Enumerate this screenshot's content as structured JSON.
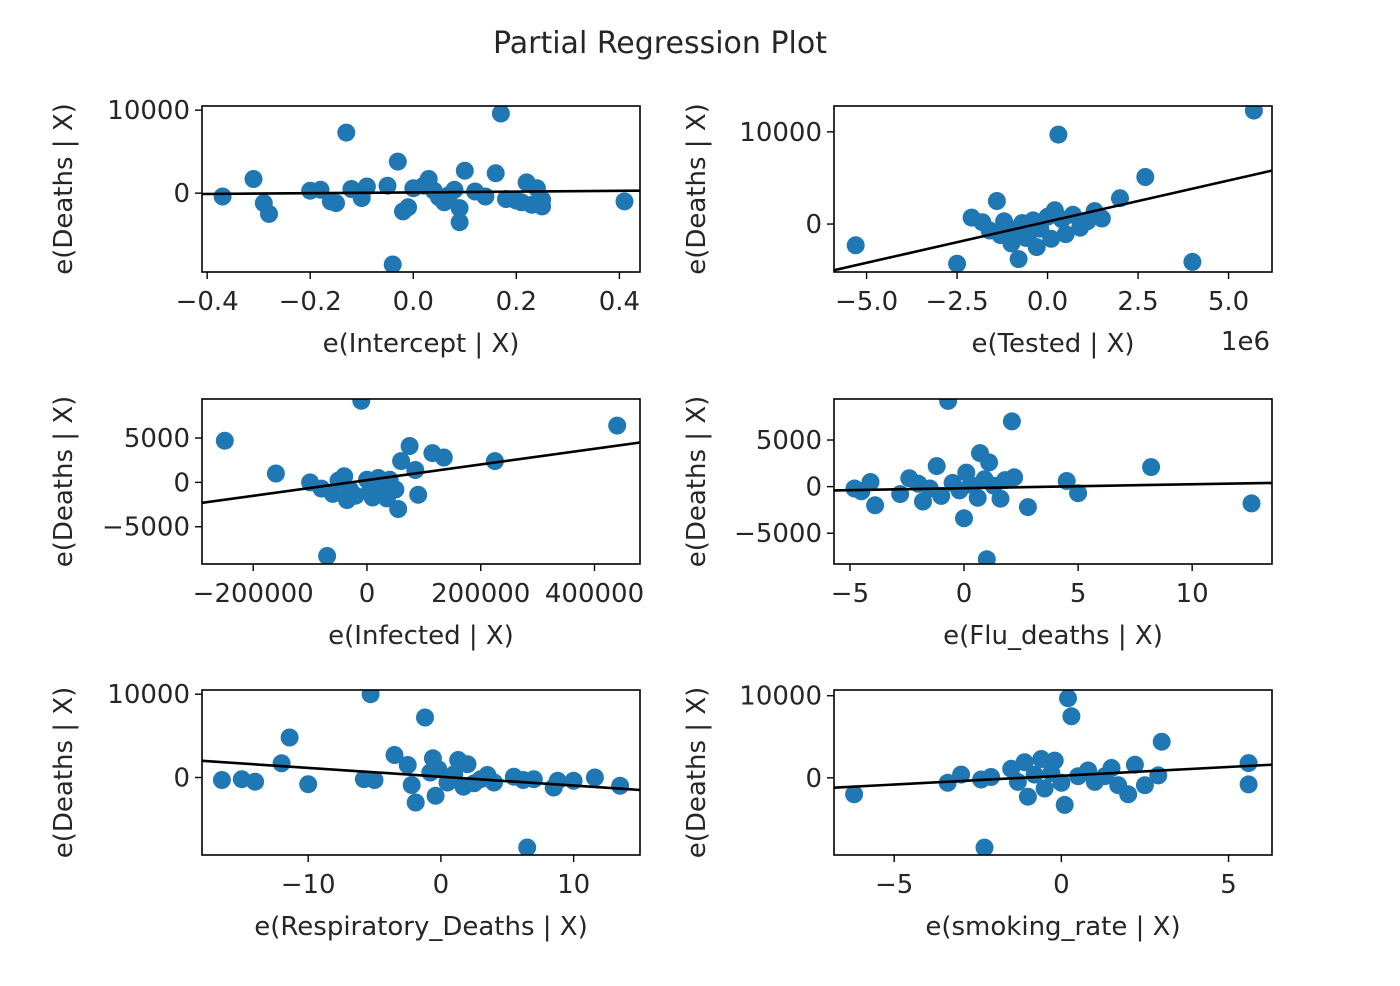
{
  "title": "Partial Regression Plot",
  "colors": {
    "points": "#1f77b4",
    "fit_line": "#000000",
    "axes": "#000000"
  },
  "chart_data": [
    {
      "type": "scatter",
      "xlabel": "e(Intercept | X)",
      "ylabel": "e(Deaths | X)",
      "xlim": [
        -0.41,
        0.44
      ],
      "ylim": [
        -9500,
        10500
      ],
      "xticks": [
        -0.4,
        -0.2,
        0.0,
        0.2,
        0.4
      ],
      "xtick_labels": [
        "−0.4",
        "−0.2",
        "0.0",
        "0.2",
        "0.4"
      ],
      "yticks": [
        0,
        10000
      ],
      "ytick_labels": [
        "0",
        "10000"
      ],
      "fit_line": {
        "x": [
          -0.41,
          0.44
        ],
        "y": [
          -100,
          300
        ]
      },
      "points": [
        {
          "x": -0.37,
          "y": -400
        },
        {
          "x": -0.31,
          "y": 1700
        },
        {
          "x": -0.29,
          "y": -1200
        },
        {
          "x": -0.28,
          "y": -2500
        },
        {
          "x": -0.2,
          "y": 300
        },
        {
          "x": -0.18,
          "y": 400
        },
        {
          "x": -0.16,
          "y": -1000
        },
        {
          "x": -0.15,
          "y": -1200
        },
        {
          "x": -0.13,
          "y": 7300
        },
        {
          "x": -0.12,
          "y": 500
        },
        {
          "x": -0.1,
          "y": -600
        },
        {
          "x": -0.09,
          "y": 800
        },
        {
          "x": -0.05,
          "y": 900
        },
        {
          "x": -0.04,
          "y": -8600
        },
        {
          "x": -0.03,
          "y": 3800
        },
        {
          "x": -0.02,
          "y": -2200
        },
        {
          "x": -0.01,
          "y": -1700
        },
        {
          "x": 0.0,
          "y": 600
        },
        {
          "x": 0.02,
          "y": 900
        },
        {
          "x": 0.03,
          "y": 1700
        },
        {
          "x": 0.04,
          "y": 300
        },
        {
          "x": 0.05,
          "y": -500
        },
        {
          "x": 0.06,
          "y": -1100
        },
        {
          "x": 0.07,
          "y": -200
        },
        {
          "x": 0.08,
          "y": 400
        },
        {
          "x": 0.09,
          "y": -1800
        },
        {
          "x": 0.09,
          "y": -3500
        },
        {
          "x": 0.1,
          "y": 2700
        },
        {
          "x": 0.12,
          "y": 200
        },
        {
          "x": 0.14,
          "y": -400
        },
        {
          "x": 0.16,
          "y": 2400
        },
        {
          "x": 0.17,
          "y": 9600
        },
        {
          "x": 0.18,
          "y": -700
        },
        {
          "x": 0.2,
          "y": -900
        },
        {
          "x": 0.21,
          "y": -1100
        },
        {
          "x": 0.22,
          "y": 1300
        },
        {
          "x": 0.23,
          "y": -1400
        },
        {
          "x": 0.24,
          "y": 600
        },
        {
          "x": 0.25,
          "y": -800
        },
        {
          "x": 0.25,
          "y": -1600
        },
        {
          "x": 0.41,
          "y": -1000
        }
      ]
    },
    {
      "type": "scatter",
      "xlabel": "e(Tested | X)",
      "ylabel": "e(Deaths | X)",
      "offset_label": "1e6",
      "xlim": [
        -5.9,
        6.2
      ],
      "ylim": [
        -5200,
        12800
      ],
      "xticks": [
        -5.0,
        -2.5,
        0.0,
        2.5,
        5.0
      ],
      "xtick_labels": [
        "−5.0",
        "−2.5",
        "0.0",
        "2.5",
        "5.0"
      ],
      "yticks": [
        0,
        10000
      ],
      "ytick_labels": [
        "0",
        "10000"
      ],
      "fit_line": {
        "x": [
          -5.9,
          6.2
        ],
        "y": [
          -5000,
          5800
        ]
      },
      "points": [
        {
          "x": -5.3,
          "y": -2300
        },
        {
          "x": -2.5,
          "y": -4300
        },
        {
          "x": -2.1,
          "y": 700
        },
        {
          "x": -1.8,
          "y": 200
        },
        {
          "x": -1.6,
          "y": -700
        },
        {
          "x": -1.4,
          "y": 2500
        },
        {
          "x": -1.3,
          "y": -1200
        },
        {
          "x": -1.2,
          "y": 300
        },
        {
          "x": -1.0,
          "y": -2100
        },
        {
          "x": -0.9,
          "y": -600
        },
        {
          "x": -0.8,
          "y": -3800
        },
        {
          "x": -0.7,
          "y": 100
        },
        {
          "x": -0.6,
          "y": -1500
        },
        {
          "x": -0.5,
          "y": -900
        },
        {
          "x": -0.4,
          "y": 400
        },
        {
          "x": -0.3,
          "y": -2500
        },
        {
          "x": -0.2,
          "y": -500
        },
        {
          "x": 0.0,
          "y": 800
        },
        {
          "x": 0.1,
          "y": -1600
        },
        {
          "x": 0.2,
          "y": 1500
        },
        {
          "x": 0.3,
          "y": 9700
        },
        {
          "x": 0.4,
          "y": 500
        },
        {
          "x": 0.5,
          "y": -1100
        },
        {
          "x": 0.7,
          "y": 1000
        },
        {
          "x": 0.9,
          "y": -400
        },
        {
          "x": 1.1,
          "y": 300
        },
        {
          "x": 1.3,
          "y": 1400
        },
        {
          "x": 1.5,
          "y": 600
        },
        {
          "x": 2.0,
          "y": 2800
        },
        {
          "x": 2.7,
          "y": 5100
        },
        {
          "x": 4.0,
          "y": -4100
        },
        {
          "x": 5.7,
          "y": 12300
        }
      ]
    },
    {
      "type": "scatter",
      "xlabel": "e(Infected | X)",
      "ylabel": "e(Deaths | X)",
      "xlim": [
        -290000,
        480000
      ],
      "ylim": [
        -9200,
        9400
      ],
      "xticks": [
        -200000,
        0,
        200000,
        400000
      ],
      "xtick_labels": [
        "−200000",
        "0",
        "200000",
        "400000"
      ],
      "yticks": [
        -5000,
        0,
        5000
      ],
      "ytick_labels": [
        "−5000",
        "0",
        "5000"
      ],
      "fit_line": {
        "x": [
          -290000,
          480000
        ],
        "y": [
          -2300,
          4500
        ]
      },
      "points": [
        {
          "x": -250000,
          "y": 4700
        },
        {
          "x": -160000,
          "y": 1000
        },
        {
          "x": -100000,
          "y": 0
        },
        {
          "x": -80000,
          "y": -700
        },
        {
          "x": -70000,
          "y": -8300
        },
        {
          "x": -60000,
          "y": -1300
        },
        {
          "x": -50000,
          "y": 200
        },
        {
          "x": -40000,
          "y": 700
        },
        {
          "x": -35000,
          "y": -2000
        },
        {
          "x": -30000,
          "y": -800
        },
        {
          "x": -20000,
          "y": -1500
        },
        {
          "x": -10000,
          "y": 9200
        },
        {
          "x": 0,
          "y": 300
        },
        {
          "x": 5000,
          "y": -1000
        },
        {
          "x": 10000,
          "y": -1700
        },
        {
          "x": 20000,
          "y": 500
        },
        {
          "x": 25000,
          "y": -600
        },
        {
          "x": 35000,
          "y": -1800
        },
        {
          "x": 40000,
          "y": 300
        },
        {
          "x": 50000,
          "y": -800
        },
        {
          "x": 55000,
          "y": -3000
        },
        {
          "x": 60000,
          "y": 2400
        },
        {
          "x": 75000,
          "y": 4100
        },
        {
          "x": 85000,
          "y": 1400
        },
        {
          "x": 90000,
          "y": -1400
        },
        {
          "x": 115000,
          "y": 3300
        },
        {
          "x": 135000,
          "y": 2800
        },
        {
          "x": 225000,
          "y": 2400
        },
        {
          "x": 440000,
          "y": 6400
        }
      ]
    },
    {
      "type": "scatter",
      "xlabel": "e(Flu_deaths | X)",
      "ylabel": "e(Deaths | X)",
      "xlim": [
        -5.7,
        13.5
      ],
      "ylim": [
        -8300,
        9400
      ],
      "xticks": [
        -5,
        0,
        5,
        10
      ],
      "xtick_labels": [
        "−5",
        "0",
        "5",
        "10"
      ],
      "yticks": [
        -5000,
        0,
        5000
      ],
      "ytick_labels": [
        "−5000",
        "0",
        "5000"
      ],
      "fit_line": {
        "x": [
          -5.7,
          13.5
        ],
        "y": [
          -400,
          400
        ]
      },
      "points": [
        {
          "x": -4.8,
          "y": -200
        },
        {
          "x": -4.5,
          "y": -500
        },
        {
          "x": -4.1,
          "y": 500
        },
        {
          "x": -3.9,
          "y": -2000
        },
        {
          "x": -2.8,
          "y": -800
        },
        {
          "x": -2.4,
          "y": 900
        },
        {
          "x": -2.0,
          "y": 300
        },
        {
          "x": -1.8,
          "y": -1600
        },
        {
          "x": -1.5,
          "y": -200
        },
        {
          "x": -1.2,
          "y": 2200
        },
        {
          "x": -1.0,
          "y": -1000
        },
        {
          "x": -0.7,
          "y": 9200
        },
        {
          "x": -0.5,
          "y": 400
        },
        {
          "x": -0.2,
          "y": -400
        },
        {
          "x": 0.0,
          "y": -3400
        },
        {
          "x": 0.1,
          "y": 1500
        },
        {
          "x": 0.3,
          "y": 200
        },
        {
          "x": 0.6,
          "y": -1200
        },
        {
          "x": 0.7,
          "y": 3600
        },
        {
          "x": 0.9,
          "y": 800
        },
        {
          "x": 1.0,
          "y": -7800
        },
        {
          "x": 1.1,
          "y": 2600
        },
        {
          "x": 1.3,
          "y": 100
        },
        {
          "x": 1.6,
          "y": -1300
        },
        {
          "x": 1.8,
          "y": 700
        },
        {
          "x": 2.1,
          "y": 7000
        },
        {
          "x": 2.2,
          "y": 1000
        },
        {
          "x": 2.8,
          "y": -2200
        },
        {
          "x": 4.5,
          "y": 600
        },
        {
          "x": 5.0,
          "y": -700
        },
        {
          "x": 8.2,
          "y": 2100
        },
        {
          "x": 12.6,
          "y": -1800
        }
      ]
    },
    {
      "type": "scatter",
      "xlabel": "e(Respiratory_Deaths | X)",
      "ylabel": "e(Deaths | X)",
      "xlim": [
        -18,
        15
      ],
      "ylim": [
        -9300,
        10500
      ],
      "xticks": [
        -10,
        0,
        10
      ],
      "xtick_labels": [
        "−10",
        "0",
        "10"
      ],
      "yticks": [
        0,
        10000
      ],
      "ytick_labels": [
        "0",
        "10000"
      ],
      "fit_line": {
        "x": [
          -18,
          15
        ],
        "y": [
          2000,
          -1500
        ]
      },
      "points": [
        {
          "x": -16.5,
          "y": -300
        },
        {
          "x": -15,
          "y": -200
        },
        {
          "x": -14,
          "y": -500
        },
        {
          "x": -12,
          "y": 1700
        },
        {
          "x": -11.4,
          "y": 4800
        },
        {
          "x": -10,
          "y": -800
        },
        {
          "x": -5.8,
          "y": -200
        },
        {
          "x": -5.3,
          "y": 10000
        },
        {
          "x": -5.0,
          "y": -300
        },
        {
          "x": -3.5,
          "y": 2700
        },
        {
          "x": -2.5,
          "y": 1500
        },
        {
          "x": -2.2,
          "y": -900
        },
        {
          "x": -1.9,
          "y": -3000
        },
        {
          "x": -1.2,
          "y": 7200
        },
        {
          "x": -0.8,
          "y": 600
        },
        {
          "x": -0.6,
          "y": 2300
        },
        {
          "x": -0.4,
          "y": -2200
        },
        {
          "x": -0.2,
          "y": 1000
        },
        {
          "x": 0.5,
          "y": -600
        },
        {
          "x": 1.0,
          "y": 400
        },
        {
          "x": 1.3,
          "y": 2100
        },
        {
          "x": 1.7,
          "y": -1100
        },
        {
          "x": 2.0,
          "y": 1600
        },
        {
          "x": 2.5,
          "y": -700
        },
        {
          "x": 3.0,
          "y": -200
        },
        {
          "x": 3.5,
          "y": 300
        },
        {
          "x": 4.0,
          "y": -600
        },
        {
          "x": 5.5,
          "y": 100
        },
        {
          "x": 6.2,
          "y": -300
        },
        {
          "x": 6.5,
          "y": -8400
        },
        {
          "x": 7.0,
          "y": -200
        },
        {
          "x": 8.5,
          "y": -1200
        },
        {
          "x": 8.8,
          "y": -400
        },
        {
          "x": 10,
          "y": -400
        },
        {
          "x": 11.6,
          "y": 0
        },
        {
          "x": 13.5,
          "y": -1000
        }
      ]
    },
    {
      "type": "scatter",
      "xlabel": "e(smoking_rate | X)",
      "ylabel": "e(Deaths | X)",
      "xlim": [
        -6.8,
        6.3
      ],
      "ylim": [
        -9400,
        10700
      ],
      "xticks": [
        -5,
        0,
        5
      ],
      "xtick_labels": [
        "−5",
        "0",
        "5"
      ],
      "yticks": [
        0,
        10000
      ],
      "ytick_labels": [
        "0",
        "10000"
      ],
      "fit_line": {
        "x": [
          -6.8,
          6.3
        ],
        "y": [
          -1200,
          1600
        ]
      },
      "points": [
        {
          "x": -6.2,
          "y": -2000
        },
        {
          "x": -3.4,
          "y": -600
        },
        {
          "x": -3.0,
          "y": 400
        },
        {
          "x": -2.4,
          "y": -200
        },
        {
          "x": -2.3,
          "y": -8500
        },
        {
          "x": -2.1,
          "y": 100
        },
        {
          "x": -1.5,
          "y": 1100
        },
        {
          "x": -1.3,
          "y": -500
        },
        {
          "x": -1.1,
          "y": 1900
        },
        {
          "x": -1.0,
          "y": -2300
        },
        {
          "x": -0.8,
          "y": 400
        },
        {
          "x": -0.6,
          "y": 2300
        },
        {
          "x": -0.5,
          "y": -1300
        },
        {
          "x": -0.3,
          "y": 600
        },
        {
          "x": -0.2,
          "y": 2100
        },
        {
          "x": 0.0,
          "y": -600
        },
        {
          "x": 0.1,
          "y": -3300
        },
        {
          "x": 0.2,
          "y": 9700
        },
        {
          "x": 0.3,
          "y": 7500
        },
        {
          "x": 0.5,
          "y": 200
        },
        {
          "x": 0.8,
          "y": 900
        },
        {
          "x": 1.0,
          "y": -500
        },
        {
          "x": 1.3,
          "y": 200
        },
        {
          "x": 1.5,
          "y": 1200
        },
        {
          "x": 1.7,
          "y": -900
        },
        {
          "x": 2.0,
          "y": -2000
        },
        {
          "x": 2.2,
          "y": 1600
        },
        {
          "x": 2.5,
          "y": -900
        },
        {
          "x": 2.9,
          "y": 300
        },
        {
          "x": 3.0,
          "y": 4400
        },
        {
          "x": 5.6,
          "y": 1800
        },
        {
          "x": 5.6,
          "y": -800
        }
      ]
    }
  ]
}
